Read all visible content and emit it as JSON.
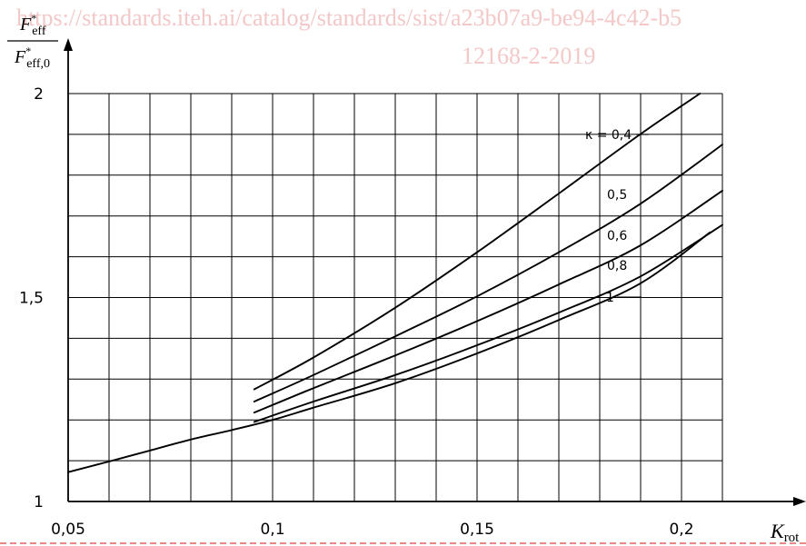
{
  "watermark": {
    "line1": "https://standards.iteh.ai/catalog/standards/sist/a23b07a9-be94-4c42-b5",
    "line2": "12168-2-2019"
  },
  "chart_data": {
    "type": "line",
    "xlabel": {
      "main": "K",
      "sub": "rot"
    },
    "ylabel": {
      "numerator": {
        "main": "F",
        "sup": "*",
        "sub": "eff"
      },
      "denominator": {
        "main": "F",
        "sup": "*",
        "sub": "eff,0"
      }
    },
    "xlim": [
      0.05,
      0.21
    ],
    "ylim": [
      1,
      2
    ],
    "grid": true,
    "x_ticks": [
      {
        "value": 0.05,
        "label": "0,05"
      },
      {
        "value": 0.1,
        "label": "0,1"
      },
      {
        "value": 0.15,
        "label": "0,15"
      },
      {
        "value": 0.2,
        "label": "0,2"
      }
    ],
    "y_ticks": [
      {
        "value": 1,
        "label": "1"
      },
      {
        "value": 1.5,
        "label": "1,5"
      },
      {
        "value": 2,
        "label": "2"
      }
    ],
    "series": [
      {
        "name": "κ = 0,4",
        "label_style": "leader",
        "x": [
          0.0955,
          0.11,
          0.13,
          0.15,
          0.17,
          0.19,
          0.2045
        ],
        "y": [
          1.275,
          1.353,
          1.475,
          1.611,
          1.755,
          1.901,
          2.0
        ]
      },
      {
        "name": "0,5",
        "label_style": "plain",
        "x": [
          0.0955,
          0.11,
          0.13,
          0.15,
          0.17,
          0.19,
          0.21
        ],
        "y": [
          1.245,
          1.31,
          1.405,
          1.503,
          1.611,
          1.73,
          1.875
        ]
      },
      {
        "name": "0,6",
        "label_style": "plain",
        "x": [
          0.0955,
          0.11,
          0.13,
          0.15,
          0.17,
          0.19,
          0.21
        ],
        "y": [
          1.218,
          1.278,
          1.358,
          1.442,
          1.532,
          1.628,
          1.762
        ]
      },
      {
        "name": "0,8",
        "label_style": "plain",
        "x": [
          0.0955,
          0.11,
          0.13,
          0.15,
          0.17,
          0.19,
          0.21
        ],
        "y": [
          1.195,
          1.245,
          1.31,
          1.383,
          1.463,
          1.552,
          1.678
        ]
      },
      {
        "name": "1",
        "label_style": "leader",
        "x": [
          0.05,
          0.06,
          0.07,
          0.08,
          0.09,
          0.1,
          0.11,
          0.13,
          0.15,
          0.17,
          0.19,
          0.207
        ],
        "y": [
          1.072,
          1.098,
          1.125,
          1.152,
          1.175,
          1.2,
          1.23,
          1.29,
          1.363,
          1.445,
          1.535,
          1.66
        ]
      }
    ]
  }
}
